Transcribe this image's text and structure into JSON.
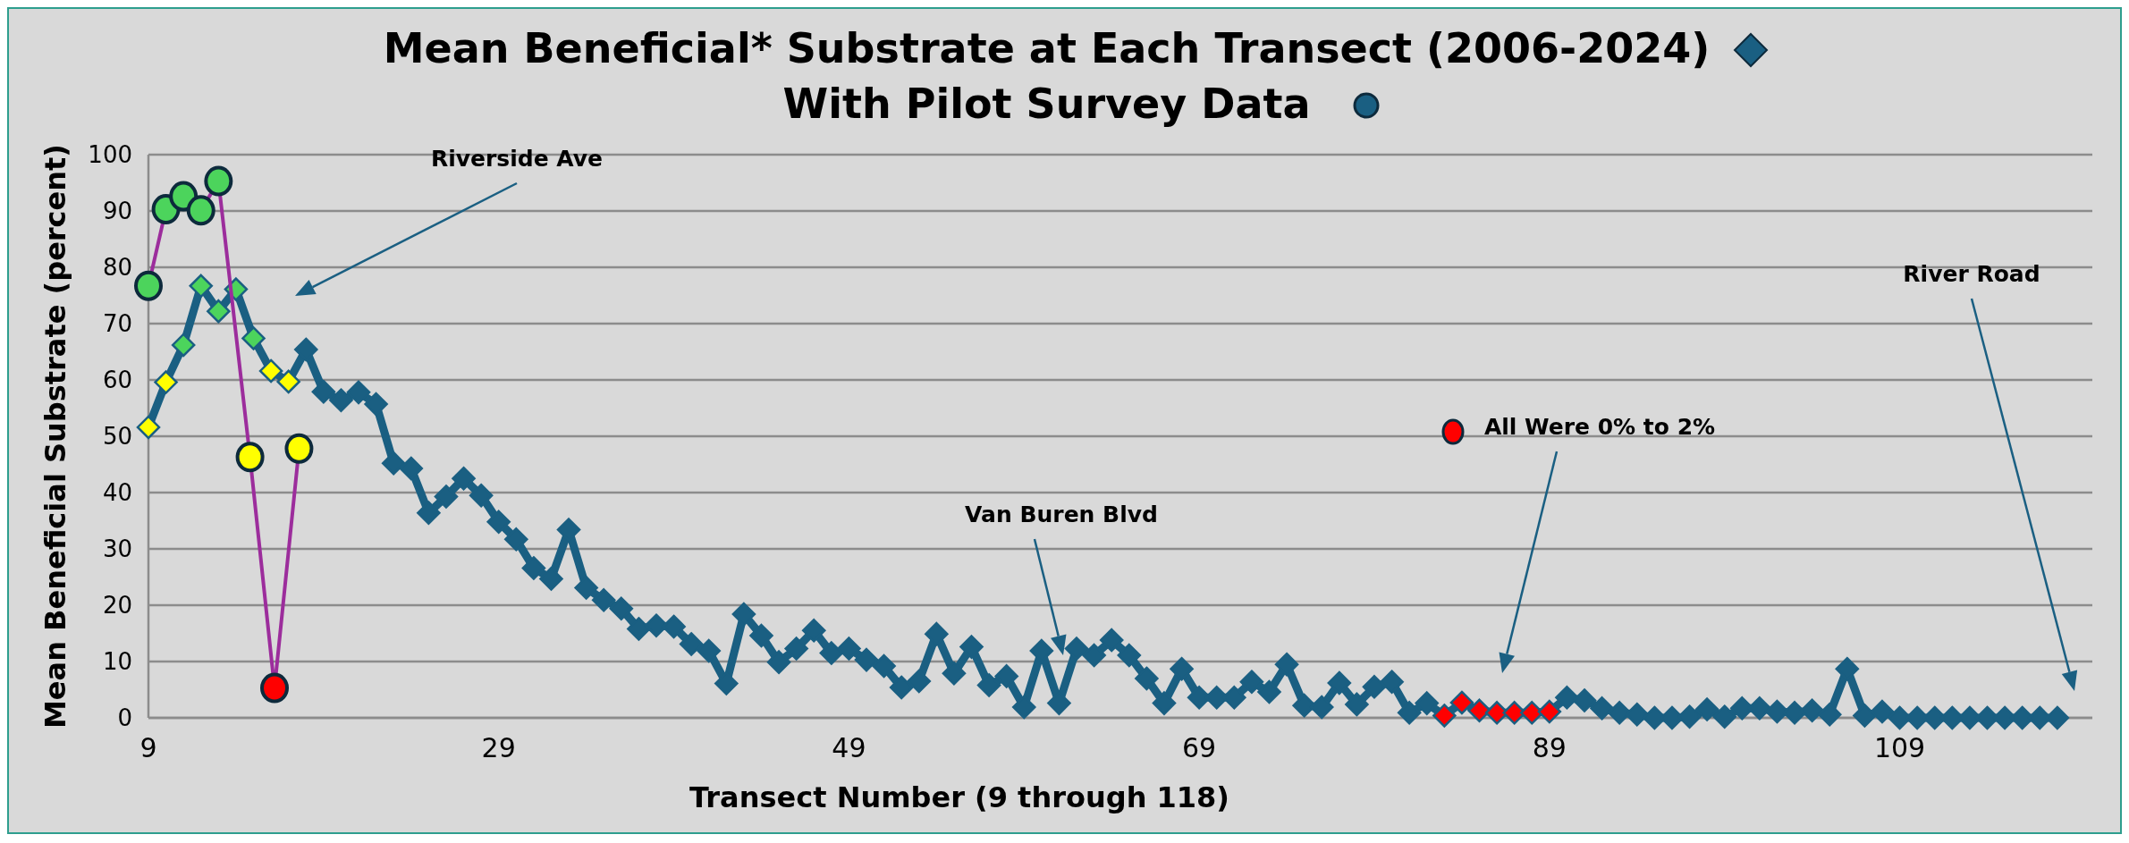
{
  "chart_data": {
    "type": "line",
    "title": "Mean Beneficial* Substrate at Each Transect (2006-2024)",
    "subtitle": "With Pilot Survey Data",
    "xlabel": "Transect Number (9 through 118)",
    "ylabel": "Mean Beneficial Substrate (percent)",
    "xlim": [
      9,
      120
    ],
    "xticks": [
      9,
      29,
      49,
      69,
      89,
      109
    ],
    "ylim": [
      0,
      100
    ],
    "yticks": [
      0,
      10,
      20,
      30,
      40,
      50,
      60,
      70,
      80,
      90,
      100
    ],
    "grid": "y",
    "line_style": "solid",
    "annotations": [
      "Riverside Ave",
      "Van Buren Blvd",
      "All Were 0% to 2%",
      "River Road"
    ],
    "series": [
      {
        "marker": "diamond",
        "color": "#1a5f82",
        "x": [
          9,
          10,
          11,
          12,
          13,
          14,
          15,
          16,
          17,
          18,
          19,
          20,
          21,
          22,
          23,
          24,
          25,
          26,
          27,
          28,
          29,
          30,
          31,
          32,
          33,
          34,
          35,
          36,
          37,
          38,
          39,
          40,
          41,
          42,
          43,
          44,
          45,
          46,
          47,
          48,
          49,
          50,
          51,
          52,
          53,
          54,
          55,
          56,
          57,
          58,
          59,
          60,
          61,
          62,
          63,
          64,
          65,
          66,
          67,
          68,
          69,
          70,
          71,
          72,
          73,
          74,
          75,
          76,
          77,
          78,
          79,
          80,
          81,
          82,
          83,
          84,
          85,
          86,
          87,
          88,
          89,
          90,
          91,
          92,
          93,
          94,
          95,
          96,
          97,
          98,
          99,
          100,
          101,
          102,
          103,
          104,
          105,
          106,
          107,
          108,
          109,
          110,
          111,
          112,
          113,
          114,
          115,
          116,
          117,
          118
        ],
        "values": [
          51.6,
          59.6,
          66.2,
          76.7,
          72.2,
          76.1,
          67.4,
          61.6,
          59.7,
          65.4,
          57.9,
          56.4,
          57.8,
          55.7,
          45.2,
          44.3,
          36.4,
          39.3,
          42.5,
          39.5,
          34.8,
          31.7,
          26.6,
          24.7,
          33.4,
          23.1,
          20.9,
          19.4,
          15.8,
          16.4,
          16.2,
          13.1,
          11.9,
          6.1,
          18.4,
          14.6,
          9.9,
          12.3,
          15.5,
          11.5,
          12.3,
          10.3,
          9.2,
          5.4,
          6.5,
          14.9,
          7.9,
          12.6,
          5.8,
          7.4,
          1.9,
          11.9,
          2.6,
          12.3,
          11.1,
          13.8,
          11.1,
          7.0,
          2.6,
          8.7,
          3.6,
          3.6,
          3.6,
          6.4,
          4.6,
          9.5,
          2.2,
          1.9,
          6.2,
          2.4,
          5.5,
          6.4,
          0.9,
          2.6,
          0.4,
          2.7,
          1.3,
          0.9,
          0.9,
          0.9,
          1.1,
          3.6,
          3.1,
          1.7,
          0.9,
          0.6,
          0,
          0,
          0.2,
          1.5,
          0.2,
          1.7,
          1.7,
          1.1,
          0.9,
          1.3,
          0.6,
          8.7,
          0.4,
          1.1,
          0,
          0,
          0,
          0,
          0,
          0,
          0,
          0,
          0,
          0
        ],
        "colors": [
          "#ffff00",
          "#ffff00",
          "#4cd45c",
          "#4cd45c",
          "#4cd45c",
          "#4cd45c",
          "#4cd45c",
          "#ffff00",
          "#ffff00",
          "#1a5f82",
          "#1a5f82",
          "#1a5f82",
          "#1a5f82",
          "#1a5f82",
          "#1a5f82",
          "#1a5f82",
          "#1a5f82",
          "#1a5f82",
          "#1a5f82",
          "#1a5f82",
          "#1a5f82",
          "#1a5f82",
          "#1a5f82",
          "#1a5f82",
          "#1a5f82",
          "#1a5f82",
          "#1a5f82",
          "#1a5f82",
          "#1a5f82",
          "#1a5f82",
          "#1a5f82",
          "#1a5f82",
          "#1a5f82",
          "#1a5f82",
          "#1a5f82",
          "#1a5f82",
          "#1a5f82",
          "#1a5f82",
          "#1a5f82",
          "#1a5f82",
          "#1a5f82",
          "#1a5f82",
          "#1a5f82",
          "#1a5f82",
          "#1a5f82",
          "#1a5f82",
          "#1a5f82",
          "#1a5f82",
          "#1a5f82",
          "#1a5f82",
          "#1a5f82",
          "#1a5f82",
          "#1a5f82",
          "#1a5f82",
          "#1a5f82",
          "#1a5f82",
          "#1a5f82",
          "#1a5f82",
          "#1a5f82",
          "#1a5f82",
          "#1a5f82",
          "#1a5f82",
          "#1a5f82",
          "#1a5f82",
          "#1a5f82",
          "#1a5f82",
          "#1a5f82",
          "#1a5f82",
          "#1a5f82",
          "#1a5f82",
          "#1a5f82",
          "#1a5f82",
          "#1a5f82",
          "#1a5f82",
          "#ff0000",
          "#ff0000",
          "#ff0000",
          "#ff0000",
          "#ff0000",
          "#ff0000",
          "#ff0000",
          "#1a5f82",
          "#1a5f82",
          "#1a5f82",
          "#1a5f82",
          "#1a5f82",
          "#1a5f82",
          "#1a5f82",
          "#1a5f82",
          "#1a5f82",
          "#1a5f82",
          "#1a5f82",
          "#1a5f82",
          "#1a5f82",
          "#1a5f82",
          "#1a5f82",
          "#1a5f82",
          "#1a5f82",
          "#1a5f82",
          "#1a5f82",
          "#1a5f82",
          "#1a5f82",
          "#1a5f82",
          "#1a5f82",
          "#1a5f82",
          "#1a5f82",
          "#1a5f82",
          "#1a5f82",
          "#1a5f82",
          "#1a5f82"
        ]
      },
      {
        "marker": "circle",
        "color": "#9c2d9c",
        "x": [
          9,
          10,
          11,
          12,
          13,
          14.8,
          16.2,
          17.6
        ],
        "values": [
          76.7,
          90.3,
          92.6,
          90.1,
          95.3,
          46.3,
          5.3,
          47.8
        ],
        "colors": [
          "#4cd45c",
          "#4cd45c",
          "#4cd45c",
          "#4cd45c",
          "#4cd45c",
          "#ffff00",
          "#ff0000",
          "#ffff00"
        ]
      }
    ]
  }
}
